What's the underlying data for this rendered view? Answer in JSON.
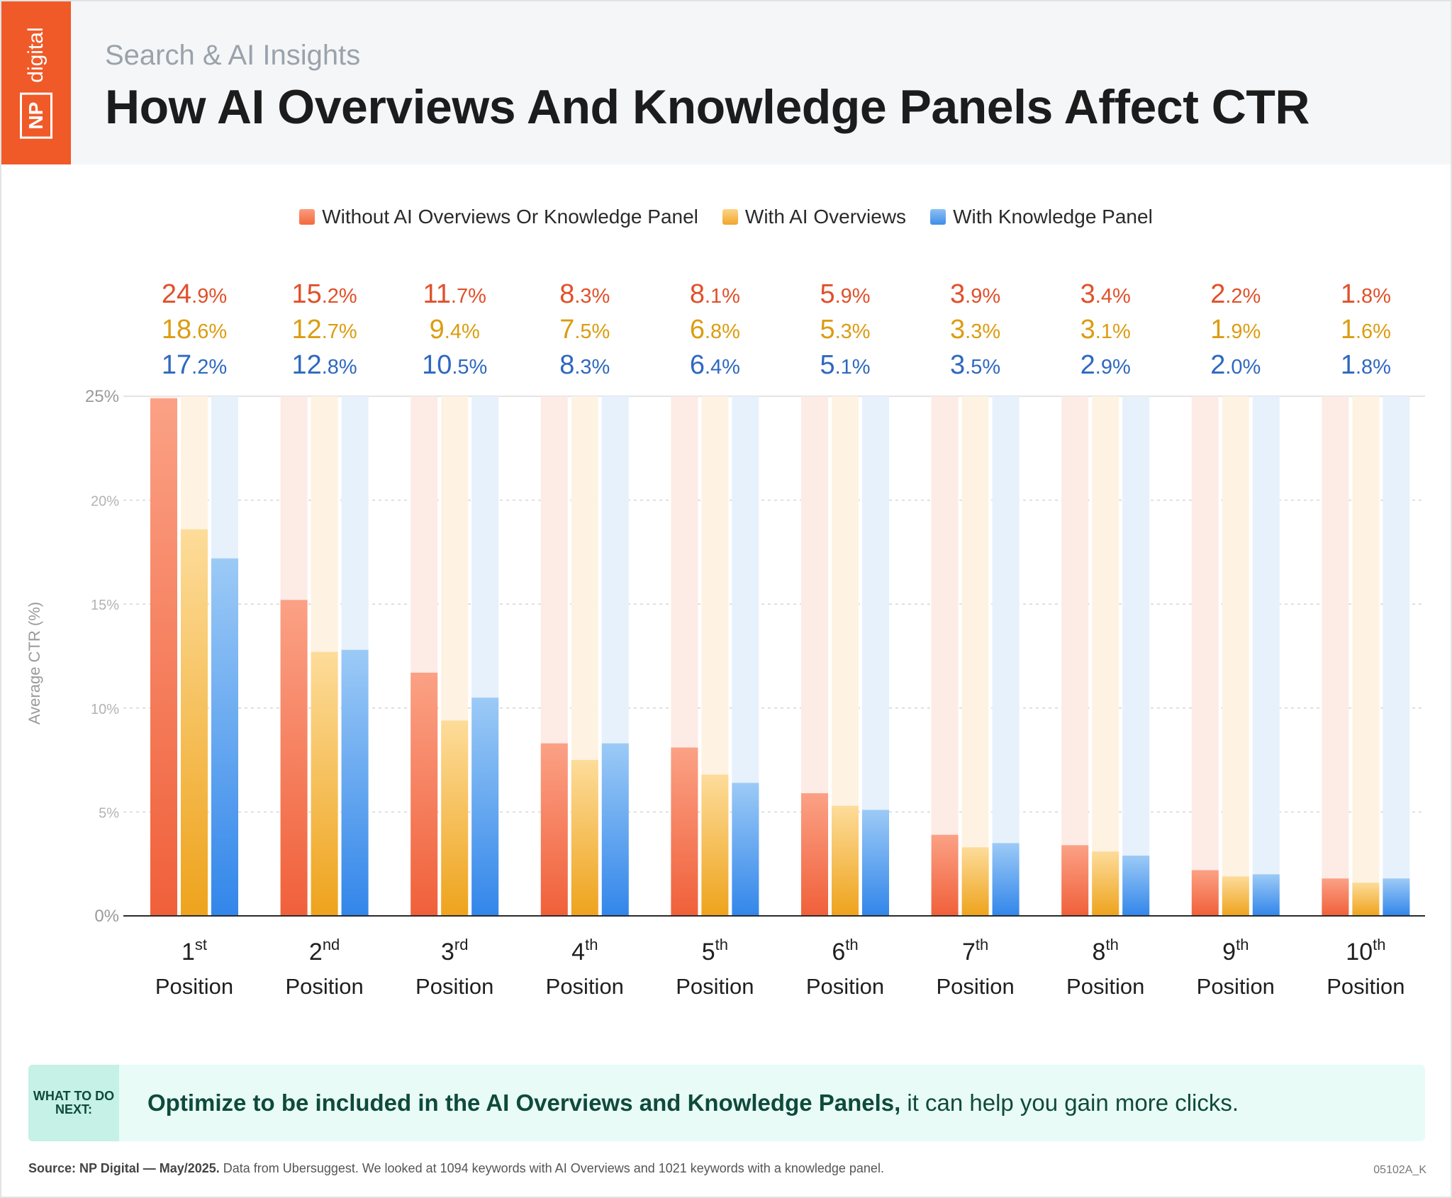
{
  "header": {
    "logo_box": "NP",
    "logo_text": "digital",
    "kicker": "Search & AI Insights",
    "title": "How AI Overviews And Knowledge Panels Affect CTR"
  },
  "colors": {
    "orange": "#f05a28",
    "red_label": "#e0502a",
    "yellow_label": "#dc9c10",
    "blue_label": "#2e68c0"
  },
  "chart_data": {
    "type": "bar",
    "ylabel": "Average CTR (%)",
    "ylim": [
      0,
      25
    ],
    "y_ticks": [
      "0%",
      "5%",
      "10%",
      "15%",
      "20%",
      "25%"
    ],
    "grid": true,
    "legend_position": "top-center",
    "categories": [
      {
        "ord": "1",
        "sup": "st",
        "word": "Position"
      },
      {
        "ord": "2",
        "sup": "nd",
        "word": "Position"
      },
      {
        "ord": "3",
        "sup": "rd",
        "word": "Position"
      },
      {
        "ord": "4",
        "sup": "th",
        "word": "Position"
      },
      {
        "ord": "5",
        "sup": "th",
        "word": "Position"
      },
      {
        "ord": "6",
        "sup": "th",
        "word": "Position"
      },
      {
        "ord": "7",
        "sup": "th",
        "word": "Position"
      },
      {
        "ord": "8",
        "sup": "th",
        "word": "Position"
      },
      {
        "ord": "9",
        "sup": "th",
        "word": "Position"
      },
      {
        "ord": "10",
        "sup": "th",
        "word": "Position"
      }
    ],
    "series": [
      {
        "name": "Without AI Overviews Or Knowledge Panel",
        "color": "#f26a3d",
        "light": "#fdebe6",
        "values": [
          24.9,
          15.2,
          11.7,
          8.3,
          8.1,
          5.9,
          3.9,
          3.4,
          2.2,
          1.8
        ],
        "labels": [
          "24.9%",
          "15.2%",
          "11.7%",
          "8.3%",
          "8.1%",
          "5.9%",
          "3.9%",
          "3.4%",
          "2.2%",
          "1.8%"
        ]
      },
      {
        "name": "With AI Overviews",
        "color": "#f2a72a",
        "light": "#fef3e2",
        "values": [
          18.6,
          12.7,
          9.4,
          7.5,
          6.8,
          5.3,
          3.3,
          3.1,
          1.9,
          1.6
        ],
        "labels": [
          "18.6%",
          "12.7%",
          "9.4%",
          "7.5%",
          "6.8%",
          "5.3%",
          "3.3%",
          "3.1%",
          "1.9%",
          "1.6%"
        ]
      },
      {
        "name": "With Knowledge Panel",
        "color": "#3e8ee8",
        "light": "#e7f1fc",
        "values": [
          17.2,
          12.8,
          10.5,
          8.3,
          6.4,
          5.1,
          3.5,
          2.9,
          2.0,
          1.8
        ],
        "labels": [
          "17.2%",
          "12.8%",
          "10.5%",
          "8.3%",
          "6.4%",
          "5.1%",
          "3.5%",
          "2.9%",
          "2.0%",
          "1.8%"
        ]
      }
    ]
  },
  "callout": {
    "tag": "WHAT TO DO NEXT:",
    "bold": "Optimize to be included in the AI Overviews and Knowledge Panels,",
    "rest": "it can help you gain more clicks."
  },
  "footer": {
    "source_bold": "Source: NP Digital — May/2025.",
    "source_rest": "Data from Ubersuggest. We looked at 1094 keywords with AI Overviews and 1021 keywords with a knowledge panel.",
    "code": "05102A_K"
  }
}
